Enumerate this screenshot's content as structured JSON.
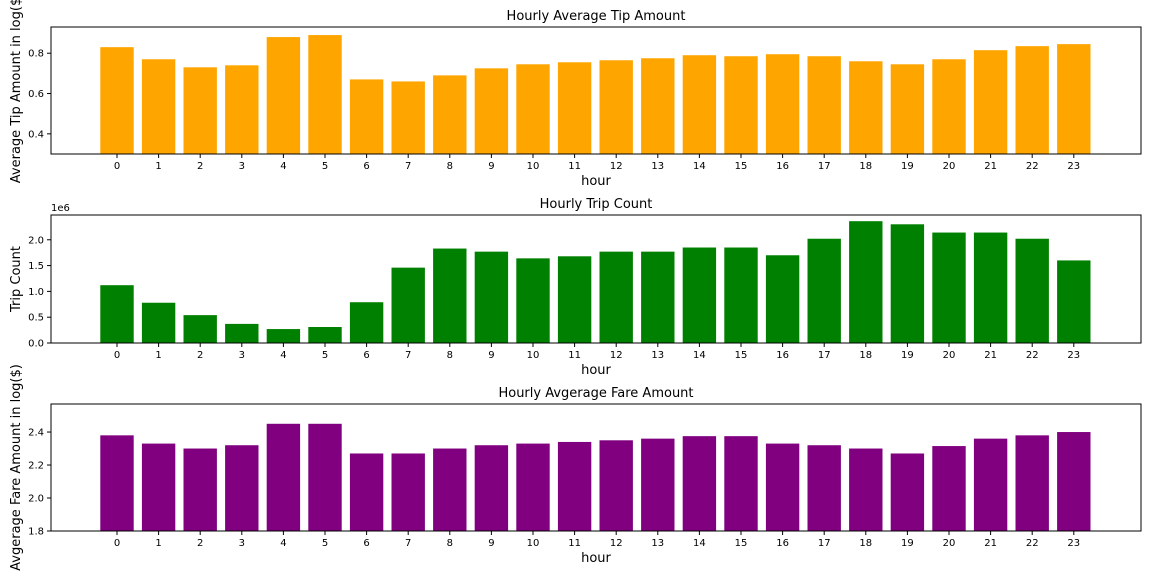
{
  "chart_data": [
    {
      "type": "bar",
      "title": "Hourly Average Tip Amount",
      "xlabel": "hour",
      "ylabel": "Average Tip Amount in log($",
      "categories": [
        "0",
        "1",
        "2",
        "3",
        "4",
        "5",
        "6",
        "7",
        "8",
        "9",
        "10",
        "11",
        "12",
        "13",
        "14",
        "15",
        "16",
        "17",
        "18",
        "19",
        "20",
        "21",
        "22",
        "23"
      ],
      "values": [
        0.83,
        0.77,
        0.73,
        0.74,
        0.88,
        0.89,
        0.67,
        0.66,
        0.69,
        0.725,
        0.745,
        0.755,
        0.765,
        0.775,
        0.79,
        0.785,
        0.795,
        0.785,
        0.76,
        0.745,
        0.77,
        0.815,
        0.835,
        0.845
      ],
      "ylim": [
        0.3,
        0.93
      ],
      "yticks": [
        0.4,
        0.6,
        0.8
      ],
      "ytick_labels": [
        "0.4",
        "0.6",
        "0.8"
      ],
      "offset_text": "",
      "color": "#FFA500",
      "grid": false
    },
    {
      "type": "bar",
      "title": "Hourly Trip Count",
      "xlabel": "hour",
      "ylabel": "Trip Count",
      "categories": [
        "0",
        "1",
        "2",
        "3",
        "4",
        "5",
        "6",
        "7",
        "8",
        "9",
        "10",
        "11",
        "12",
        "13",
        "14",
        "15",
        "16",
        "17",
        "18",
        "19",
        "20",
        "21",
        "22",
        "23"
      ],
      "values": [
        1.12,
        0.78,
        0.54,
        0.37,
        0.27,
        0.31,
        0.79,
        1.46,
        1.83,
        1.77,
        1.64,
        1.68,
        1.77,
        1.77,
        1.85,
        1.85,
        1.7,
        2.02,
        2.36,
        2.3,
        2.14,
        2.14,
        2.02,
        1.6
      ],
      "value_scale": "1e6",
      "ylim": [
        0,
        2.48
      ],
      "yticks": [
        0,
        0.5,
        1.0,
        1.5,
        2.0
      ],
      "ytick_labels": [
        "0.0",
        "0.5",
        "1.0",
        "1.5",
        "2.0"
      ],
      "offset_text": "1e6",
      "color": "#008000",
      "grid": false
    },
    {
      "type": "bar",
      "title": "Hourly Avgerage Fare Amount",
      "xlabel": "hour",
      "ylabel": "Avgerage Fare Amount in log($)",
      "categories": [
        "0",
        "1",
        "2",
        "3",
        "4",
        "5",
        "6",
        "7",
        "8",
        "9",
        "10",
        "11",
        "12",
        "13",
        "14",
        "15",
        "16",
        "17",
        "18",
        "19",
        "20",
        "21",
        "22",
        "23"
      ],
      "values": [
        2.38,
        2.33,
        2.3,
        2.32,
        2.45,
        2.45,
        2.27,
        2.27,
        2.3,
        2.32,
        2.33,
        2.34,
        2.35,
        2.36,
        2.375,
        2.375,
        2.33,
        2.32,
        2.3,
        2.27,
        2.315,
        2.36,
        2.38,
        2.4
      ],
      "ylim": [
        1.8,
        2.57
      ],
      "yticks": [
        1.8,
        2.0,
        2.2,
        2.4
      ],
      "ytick_labels": [
        "1.8",
        "2.0",
        "2.2",
        "2.4"
      ],
      "offset_text": "",
      "color": "#800080",
      "grid": false
    }
  ]
}
